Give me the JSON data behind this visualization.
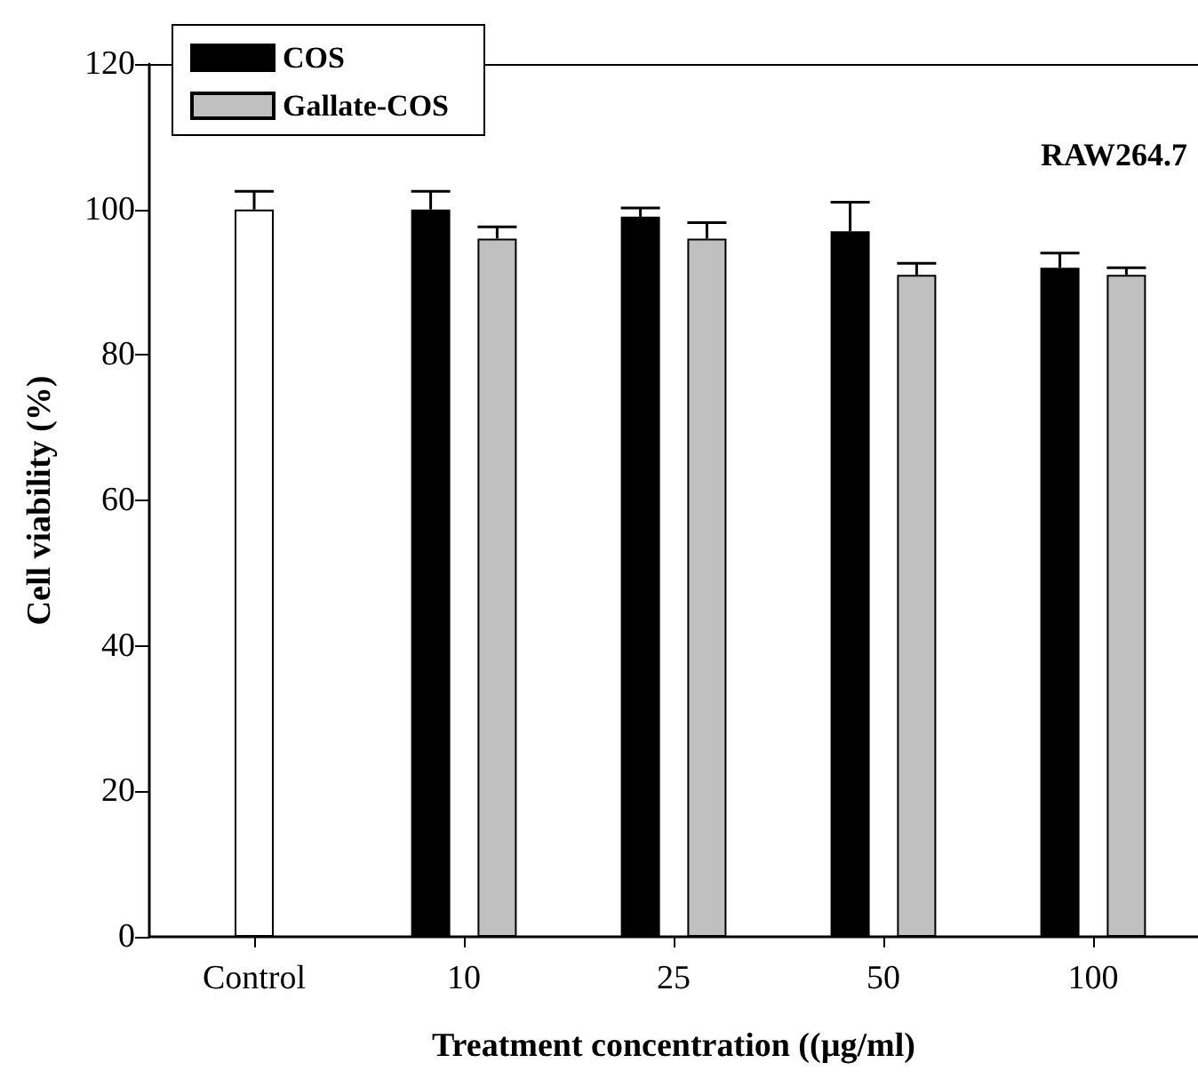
{
  "chart_data": {
    "type": "bar",
    "categories": [
      "Control",
      "10",
      "25",
      "50",
      "100"
    ],
    "series": [
      {
        "color": "#ffffff",
        "values": [
          100,
          null,
          null,
          null,
          null
        ],
        "errors": [
          [
            100,
            102.5
          ],
          null,
          null,
          null,
          null
        ]
      },
      {
        "name": "COS",
        "color": "#000000",
        "values": [
          null,
          100,
          99,
          97,
          92
        ],
        "errors": [
          null,
          [
            100,
            102.5
          ],
          [
            99,
            100.2
          ],
          [
            97,
            101
          ],
          [
            92,
            94
          ]
        ]
      },
      {
        "name": "Gallate-COS",
        "color": "#c0c0c0",
        "values": [
          null,
          96,
          96,
          91,
          91
        ],
        "errors": [
          null,
          [
            96,
            97.6
          ],
          [
            96,
            98.2
          ],
          [
            91,
            92.6
          ],
          [
            91,
            92
          ]
        ]
      }
    ],
    "xlabel": "Treatment concentration ((µg/ml)",
    "ylabel": "Cell viability (%)",
    "annotations": [
      "RAW264.7"
    ],
    "ylim": [
      0,
      120
    ],
    "yticks": [
      0,
      20,
      40,
      60,
      80,
      100,
      120
    ],
    "grid": false,
    "legend": "top left"
  }
}
